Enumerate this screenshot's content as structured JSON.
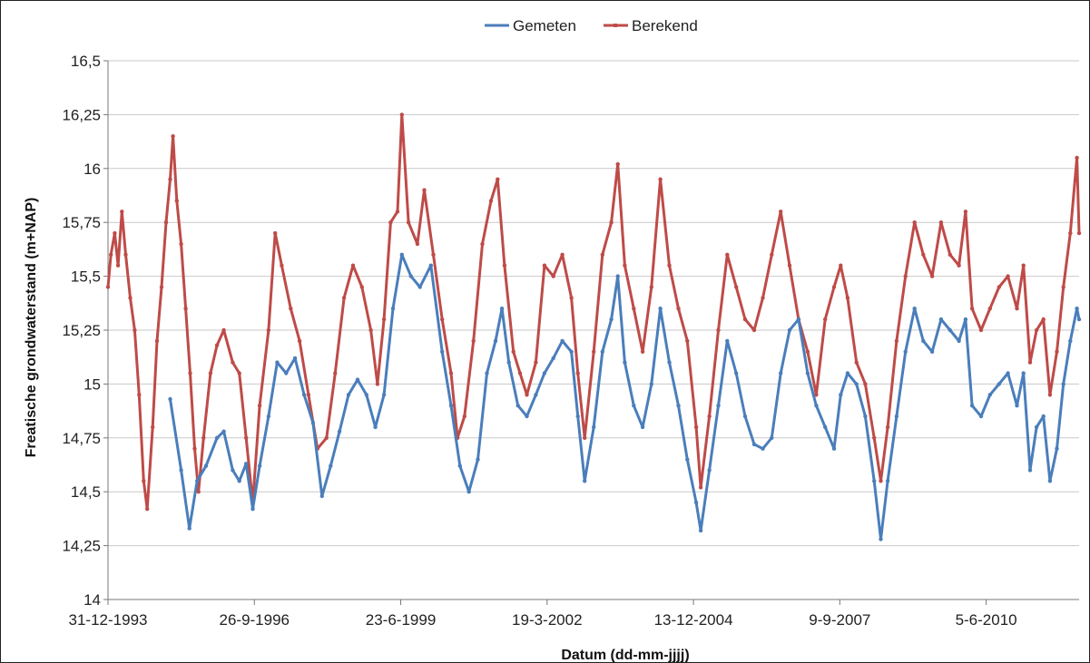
{
  "chart_data": {
    "type": "line",
    "title": "",
    "xlabel": "Datum (dd-mm-jjjj)",
    "ylabel": "Freatische grondwaterstand (m+NAP)",
    "ylim": [
      14,
      16.5
    ],
    "y_ticks": [
      "14",
      "14,25",
      "14,5",
      "14,75",
      "15",
      "15,25",
      "15,5",
      "15,75",
      "16",
      "16,25",
      "16,5"
    ],
    "x_ticks": [
      "31-12-1993",
      "26-9-1996",
      "23-6-1999",
      "19-3-2002",
      "13-12-2004",
      "9-9-2007",
      "5-6-2010"
    ],
    "x_tick_dates": [
      "1993-12-31",
      "1996-09-26",
      "1999-06-23",
      "2002-03-19",
      "2004-12-13",
      "2007-09-09",
      "2010-06-05"
    ],
    "xlim": [
      "1993-12-31",
      "2012-03-01"
    ],
    "grid": true,
    "legend_position": "top-center",
    "series": [
      {
        "name": "Gemeten",
        "color": "#4a7ebb",
        "points": [
          [
            "1995-03-01",
            14.93
          ],
          [
            "1995-05-15",
            14.6
          ],
          [
            "1995-07-10",
            14.33
          ],
          [
            "1995-09-01",
            14.55
          ],
          [
            "1995-11-01",
            14.62
          ],
          [
            "1996-01-15",
            14.75
          ],
          [
            "1996-03-01",
            14.78
          ],
          [
            "1996-05-01",
            14.6
          ],
          [
            "1996-06-15",
            14.55
          ],
          [
            "1996-08-01",
            14.63
          ],
          [
            "1996-09-15",
            14.42
          ],
          [
            "1996-11-01",
            14.62
          ],
          [
            "1997-01-01",
            14.85
          ],
          [
            "1997-03-01",
            15.1
          ],
          [
            "1997-05-01",
            15.05
          ],
          [
            "1997-07-01",
            15.12
          ],
          [
            "1997-09-01",
            14.95
          ],
          [
            "1997-11-01",
            14.82
          ],
          [
            "1998-01-01",
            14.48
          ],
          [
            "1998-03-01",
            14.62
          ],
          [
            "1998-05-01",
            14.78
          ],
          [
            "1998-07-01",
            14.95
          ],
          [
            "1998-09-01",
            15.02
          ],
          [
            "1998-11-01",
            14.95
          ],
          [
            "1999-01-01",
            14.8
          ],
          [
            "1999-03-01",
            14.95
          ],
          [
            "1999-05-01",
            15.35
          ],
          [
            "1999-07-01",
            15.6
          ],
          [
            "1999-09-01",
            15.5
          ],
          [
            "1999-11-01",
            15.45
          ],
          [
            "2000-01-15",
            15.55
          ],
          [
            "2000-04-01",
            15.15
          ],
          [
            "2000-06-01",
            14.9
          ],
          [
            "2000-08-01",
            14.62
          ],
          [
            "2000-10-01",
            14.5
          ],
          [
            "2000-12-01",
            14.65
          ],
          [
            "2001-02-01",
            15.05
          ],
          [
            "2001-04-01",
            15.2
          ],
          [
            "2001-05-15",
            15.35
          ],
          [
            "2001-07-01",
            15.1
          ],
          [
            "2001-09-01",
            14.9
          ],
          [
            "2001-11-01",
            14.85
          ],
          [
            "2002-01-01",
            14.95
          ],
          [
            "2002-03-01",
            15.05
          ],
          [
            "2002-05-01",
            15.12
          ],
          [
            "2002-07-01",
            15.2
          ],
          [
            "2002-09-01",
            15.15
          ],
          [
            "2002-10-15",
            14.85
          ],
          [
            "2002-12-01",
            14.55
          ],
          [
            "2003-02-01",
            14.8
          ],
          [
            "2003-04-01",
            15.15
          ],
          [
            "2003-06-01",
            15.3
          ],
          [
            "2003-07-15",
            15.5
          ],
          [
            "2003-09-01",
            15.1
          ],
          [
            "2003-11-01",
            14.9
          ],
          [
            "2004-01-01",
            14.8
          ],
          [
            "2004-03-01",
            15.0
          ],
          [
            "2004-05-01",
            15.35
          ],
          [
            "2004-07-01",
            15.1
          ],
          [
            "2004-09-01",
            14.9
          ],
          [
            "2004-11-01",
            14.65
          ],
          [
            "2005-01-01",
            14.45
          ],
          [
            "2005-02-01",
            14.32
          ],
          [
            "2005-04-01",
            14.6
          ],
          [
            "2005-06-01",
            14.9
          ],
          [
            "2005-08-01",
            15.2
          ],
          [
            "2005-10-01",
            15.05
          ],
          [
            "2005-12-01",
            14.85
          ],
          [
            "2006-02-01",
            14.72
          ],
          [
            "2006-04-01",
            14.7
          ],
          [
            "2006-06-01",
            14.75
          ],
          [
            "2006-08-01",
            15.05
          ],
          [
            "2006-10-01",
            15.25
          ],
          [
            "2006-12-01",
            15.3
          ],
          [
            "2007-02-01",
            15.05
          ],
          [
            "2007-04-01",
            14.9
          ],
          [
            "2007-06-01",
            14.8
          ],
          [
            "2007-08-01",
            14.7
          ],
          [
            "2007-09-15",
            14.95
          ],
          [
            "2007-11-01",
            15.05
          ],
          [
            "2008-01-01",
            15.0
          ],
          [
            "2008-03-01",
            14.85
          ],
          [
            "2008-05-01",
            14.55
          ],
          [
            "2008-06-15",
            14.28
          ],
          [
            "2008-08-01",
            14.55
          ],
          [
            "2008-10-01",
            14.85
          ],
          [
            "2008-12-01",
            15.15
          ],
          [
            "2009-02-01",
            15.35
          ],
          [
            "2009-04-01",
            15.2
          ],
          [
            "2009-06-01",
            15.15
          ],
          [
            "2009-08-01",
            15.3
          ],
          [
            "2009-10-01",
            15.25
          ],
          [
            "2009-12-01",
            15.2
          ],
          [
            "2010-01-15",
            15.3
          ],
          [
            "2010-03-01",
            14.9
          ],
          [
            "2010-05-01",
            14.85
          ],
          [
            "2010-07-01",
            14.95
          ],
          [
            "2010-09-01",
            15.0
          ],
          [
            "2010-11-01",
            15.05
          ],
          [
            "2011-01-01",
            14.9
          ],
          [
            "2011-02-15",
            15.05
          ],
          [
            "2011-04-01",
            14.6
          ],
          [
            "2011-05-15",
            14.8
          ],
          [
            "2011-07-01",
            14.85
          ],
          [
            "2011-08-15",
            14.55
          ],
          [
            "2011-10-01",
            14.7
          ],
          [
            "2011-11-15",
            15.0
          ],
          [
            "2012-01-01",
            15.2
          ],
          [
            "2012-02-15",
            15.35
          ],
          [
            "2012-03-01",
            15.3
          ]
        ]
      },
      {
        "name": "Berekend",
        "color": "#be4b48",
        "points": [
          [
            "1993-12-31",
            15.45
          ],
          [
            "1994-01-20",
            15.6
          ],
          [
            "1994-02-15",
            15.7
          ],
          [
            "1994-03-10",
            15.55
          ],
          [
            "1994-04-05",
            15.8
          ],
          [
            "1994-05-01",
            15.6
          ],
          [
            "1994-06-01",
            15.4
          ],
          [
            "1994-07-01",
            15.25
          ],
          [
            "1994-08-01",
            14.95
          ],
          [
            "1994-09-01",
            14.55
          ],
          [
            "1994-09-25",
            14.42
          ],
          [
            "1994-11-01",
            14.8
          ],
          [
            "1994-12-01",
            15.2
          ],
          [
            "1995-01-01",
            15.45
          ],
          [
            "1995-02-01",
            15.75
          ],
          [
            "1995-03-01",
            15.95
          ],
          [
            "1995-03-20",
            16.15
          ],
          [
            "1995-04-15",
            15.85
          ],
          [
            "1995-05-15",
            15.65
          ],
          [
            "1995-06-15",
            15.35
          ],
          [
            "1995-07-15",
            15.05
          ],
          [
            "1995-08-15",
            14.7
          ],
          [
            "1995-09-10",
            14.5
          ],
          [
            "1995-10-15",
            14.75
          ],
          [
            "1995-12-01",
            15.05
          ],
          [
            "1996-01-15",
            15.18
          ],
          [
            "1996-03-01",
            15.25
          ],
          [
            "1996-05-01",
            15.1
          ],
          [
            "1996-06-15",
            15.05
          ],
          [
            "1996-08-01",
            14.75
          ],
          [
            "1996-09-15",
            14.45
          ],
          [
            "1996-11-01",
            14.9
          ],
          [
            "1997-01-01",
            15.25
          ],
          [
            "1997-02-15",
            15.7
          ],
          [
            "1997-04-01",
            15.55
          ],
          [
            "1997-06-01",
            15.35
          ],
          [
            "1997-08-01",
            15.2
          ],
          [
            "1997-10-01",
            14.95
          ],
          [
            "1997-12-01",
            14.7
          ],
          [
            "1998-02-01",
            14.75
          ],
          [
            "1998-04-01",
            15.05
          ],
          [
            "1998-06-01",
            15.4
          ],
          [
            "1998-08-01",
            15.55
          ],
          [
            "1998-10-01",
            15.45
          ],
          [
            "1998-12-01",
            15.25
          ],
          [
            "1999-01-15",
            15.0
          ],
          [
            "1999-03-01",
            15.3
          ],
          [
            "1999-04-15",
            15.75
          ],
          [
            "1999-06-01",
            15.8
          ],
          [
            "1999-07-01",
            16.25
          ],
          [
            "1999-08-15",
            15.75
          ],
          [
            "1999-10-15",
            15.65
          ],
          [
            "1999-12-01",
            15.9
          ],
          [
            "2000-02-01",
            15.6
          ],
          [
            "2000-04-01",
            15.3
          ],
          [
            "2000-06-01",
            15.05
          ],
          [
            "2000-07-15",
            14.75
          ],
          [
            "2000-09-01",
            14.85
          ],
          [
            "2000-11-01",
            15.2
          ],
          [
            "2001-01-01",
            15.65
          ],
          [
            "2001-03-01",
            15.85
          ],
          [
            "2001-04-15",
            15.95
          ],
          [
            "2001-06-01",
            15.55
          ],
          [
            "2001-08-01",
            15.15
          ],
          [
            "2001-09-15",
            15.05
          ],
          [
            "2001-11-01",
            14.95
          ],
          [
            "2002-01-01",
            15.1
          ],
          [
            "2002-03-01",
            15.55
          ],
          [
            "2002-05-01",
            15.5
          ],
          [
            "2002-07-01",
            15.6
          ],
          [
            "2002-09-01",
            15.4
          ],
          [
            "2002-10-15",
            15.05
          ],
          [
            "2002-12-01",
            14.75
          ],
          [
            "2003-02-01",
            15.15
          ],
          [
            "2003-04-01",
            15.6
          ],
          [
            "2003-06-01",
            15.75
          ],
          [
            "2003-07-15",
            16.02
          ],
          [
            "2003-09-01",
            15.55
          ],
          [
            "2003-11-01",
            15.35
          ],
          [
            "2004-01-01",
            15.15
          ],
          [
            "2004-03-01",
            15.45
          ],
          [
            "2004-05-01",
            15.95
          ],
          [
            "2004-07-01",
            15.55
          ],
          [
            "2004-09-01",
            15.35
          ],
          [
            "2004-11-01",
            15.2
          ],
          [
            "2005-01-01",
            14.8
          ],
          [
            "2005-02-01",
            14.52
          ],
          [
            "2005-04-01",
            14.85
          ],
          [
            "2005-06-01",
            15.25
          ],
          [
            "2005-08-01",
            15.6
          ],
          [
            "2005-10-01",
            15.45
          ],
          [
            "2005-12-01",
            15.3
          ],
          [
            "2006-02-01",
            15.25
          ],
          [
            "2006-04-01",
            15.4
          ],
          [
            "2006-06-01",
            15.6
          ],
          [
            "2006-08-01",
            15.8
          ],
          [
            "2006-10-01",
            15.55
          ],
          [
            "2006-12-01",
            15.3
          ],
          [
            "2007-02-01",
            15.15
          ],
          [
            "2007-04-01",
            14.95
          ],
          [
            "2007-06-01",
            15.3
          ],
          [
            "2007-08-01",
            15.45
          ],
          [
            "2007-09-15",
            15.55
          ],
          [
            "2007-11-01",
            15.4
          ],
          [
            "2008-01-01",
            15.1
          ],
          [
            "2008-03-01",
            15.0
          ],
          [
            "2008-05-01",
            14.75
          ],
          [
            "2008-06-15",
            14.55
          ],
          [
            "2008-08-01",
            14.8
          ],
          [
            "2008-10-01",
            15.2
          ],
          [
            "2008-12-01",
            15.5
          ],
          [
            "2009-02-01",
            15.75
          ],
          [
            "2009-04-01",
            15.6
          ],
          [
            "2009-06-01",
            15.5
          ],
          [
            "2009-08-01",
            15.75
          ],
          [
            "2009-10-01",
            15.6
          ],
          [
            "2009-12-01",
            15.55
          ],
          [
            "2010-01-15",
            15.8
          ],
          [
            "2010-03-01",
            15.35
          ],
          [
            "2010-05-01",
            15.25
          ],
          [
            "2010-07-01",
            15.35
          ],
          [
            "2010-09-01",
            15.45
          ],
          [
            "2010-11-01",
            15.5
          ],
          [
            "2011-01-01",
            15.35
          ],
          [
            "2011-02-15",
            15.55
          ],
          [
            "2011-04-01",
            15.1
          ],
          [
            "2011-05-15",
            15.25
          ],
          [
            "2011-07-01",
            15.3
          ],
          [
            "2011-08-15",
            14.95
          ],
          [
            "2011-10-01",
            15.15
          ],
          [
            "2011-11-15",
            15.45
          ],
          [
            "2012-01-01",
            15.7
          ],
          [
            "2012-02-15",
            16.05
          ],
          [
            "2012-03-01",
            15.7
          ]
        ]
      }
    ]
  }
}
